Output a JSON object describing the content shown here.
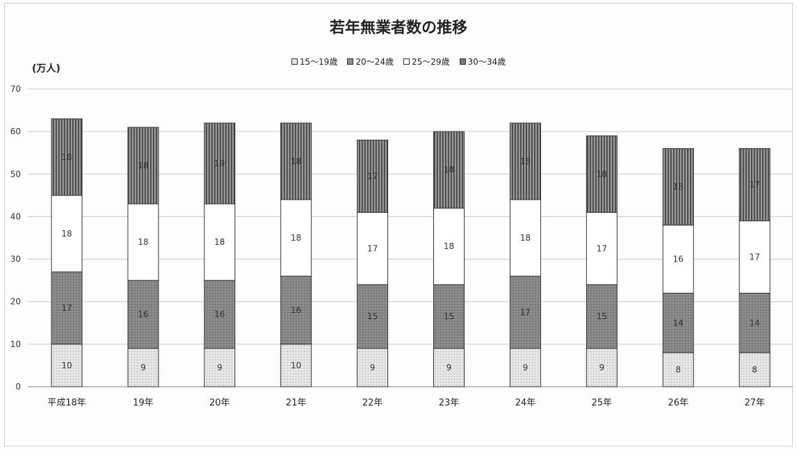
{
  "chart_data": {
    "type": "bar",
    "stacked": true,
    "title": "若年無業者数の推移",
    "ylabel": "(万人)",
    "ylim": [
      0,
      70
    ],
    "yticks": [
      0,
      10,
      20,
      30,
      40,
      50,
      60,
      70
    ],
    "grid": true,
    "legend_position": "top",
    "categories": [
      "平成18年",
      "19年",
      "20年",
      "21年",
      "22年",
      "23年",
      "24年",
      "25年",
      "26年",
      "27年"
    ],
    "series": [
      {
        "name": "15～19歳",
        "values": [
          10,
          9,
          9,
          10,
          9,
          9,
          9,
          9,
          8,
          8
        ],
        "color": "#e2e2e2",
        "pattern": "fine-dots"
      },
      {
        "name": "20～24歳",
        "values": [
          17,
          16,
          16,
          16,
          15,
          15,
          17,
          15,
          14,
          14
        ],
        "color": "#8f8f8f",
        "pattern": "dots"
      },
      {
        "name": "25～29歳",
        "values": [
          18,
          18,
          18,
          18,
          17,
          18,
          18,
          17,
          16,
          17
        ],
        "color": "#ffffff",
        "pattern": "none"
      },
      {
        "name": "30～34歳",
        "values": [
          18,
          18,
          19,
          18,
          17,
          18,
          18,
          18,
          18,
          17
        ],
        "color": "#7a7a7a",
        "pattern": "vertical-lines"
      }
    ]
  }
}
